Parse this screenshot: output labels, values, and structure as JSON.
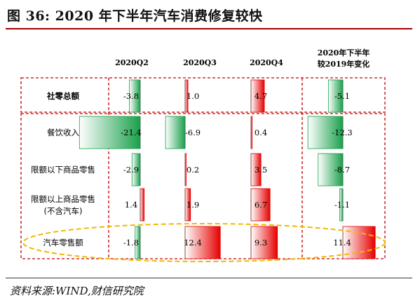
{
  "title": "图 36:  2020 年下半年汽车消费修复较快",
  "source": "资料来源:WIND,财信研究院",
  "chart_data": {
    "type": "table",
    "columns": [
      "2020Q2",
      "2020Q3",
      "2020Q4",
      "2020年下半年|较2019年变化"
    ],
    "rows": [
      {
        "label": "社零总额",
        "values": [
          -3.8,
          1.0,
          4.7,
          -5.1
        ],
        "bold": true
      },
      {
        "label": "餐饮收入",
        "values": [
          -21.4,
          -6.9,
          0.4,
          -12.3
        ]
      },
      {
        "label": "限额以下商品零售",
        "values": [
          -2.9,
          0.2,
          3.5,
          -8.7
        ]
      },
      {
        "label": "限额以上商品零售|(不含汽车)",
        "values": [
          1.4,
          1.9,
          6.7,
          -1.1
        ]
      },
      {
        "label": "汽车零售额",
        "values": [
          -1.8,
          12.4,
          9.3,
          11.4
        ]
      }
    ],
    "value_labels": [
      [
        "-3.8",
        "1.0",
        "4.7",
        "-5.1"
      ],
      [
        "-21.4",
        "-6.9",
        "0.4",
        "-12.3"
      ],
      [
        "-2.9",
        "0.2",
        "3.5",
        "-8.7"
      ],
      [
        "1.4",
        "1.9",
        "6.7",
        "-1.1"
      ],
      [
        "-1.8",
        "12.4",
        "9.3",
        "11.4"
      ]
    ],
    "colors": {
      "positive": "#e60000",
      "negative": "#19a04b",
      "box": "#c00000",
      "highlight": "#f2b800"
    }
  }
}
